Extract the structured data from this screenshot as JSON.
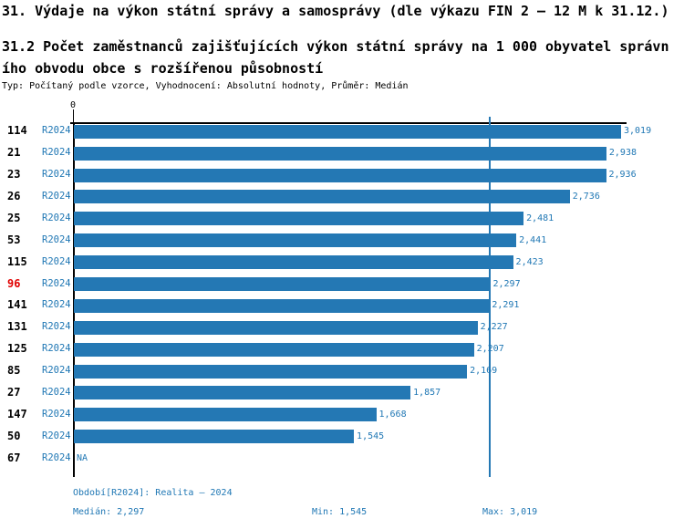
{
  "header": {
    "title": "31. Výdaje na výkon státní správy a samosprávy (dle výkazu FIN 2 – 12 M k 31.12.)",
    "subtitle": "31.2 Počet zaměstnanců zajišťujících výkon státní správy na 1 000 obyvatel správního obvodu obce s rozšířenou působností",
    "meta": "Typ: Počítaný podle vzorce, Vyhodnocení: Absolutní hodnoty, Průměr: Medián"
  },
  "chart_data": {
    "type": "bar",
    "orientation": "horizontal",
    "series_label": "R2024",
    "axis": {
      "zero_label": "0",
      "min": 0,
      "max": 3019,
      "median": 2297
    },
    "categories": [
      "114",
      "21",
      "23",
      "26",
      "25",
      "53",
      "115",
      "96",
      "141",
      "131",
      "125",
      "85",
      "27",
      "147",
      "50",
      "67"
    ],
    "values": [
      3019,
      2938,
      2936,
      2736,
      2481,
      2441,
      2423,
      2297,
      2291,
      2227,
      2207,
      2169,
      1857,
      1668,
      1545,
      null
    ],
    "value_labels": [
      "3,019",
      "2,938",
      "2,936",
      "2,736",
      "2,481",
      "2,441",
      "2,423",
      "2,297",
      "2,291",
      "2,227",
      "2,207",
      "2,169",
      "1,857",
      "1,668",
      "1,545",
      "NA"
    ],
    "highlighted_category": "96",
    "legend_position": "none",
    "grid": false,
    "colors": {
      "bar": "#2478b4",
      "text_blue": "#1f77b4",
      "highlight_red": "#e00000",
      "axis_black": "#000000"
    }
  },
  "footer": {
    "period": "Období[R2024]: Realita – 2024",
    "median": "Medián: 2,297",
    "min": "Min: 1,545",
    "max": "Max: 3,019"
  }
}
